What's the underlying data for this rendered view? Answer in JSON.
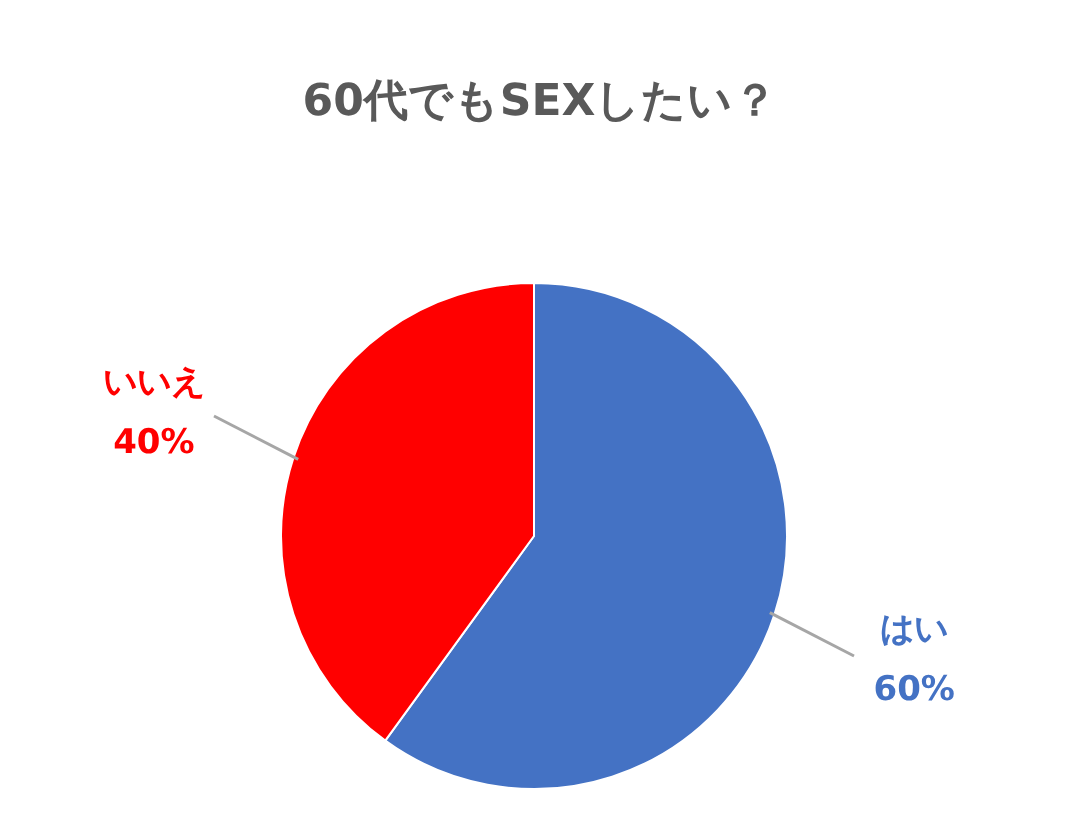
{
  "chart_data": {
    "type": "pie",
    "title": "60代でもSEXしたい？",
    "categories": [
      "はい",
      "いいえ"
    ],
    "values": [
      60,
      40
    ],
    "value_labels": [
      "60%",
      "40%"
    ],
    "colors": [
      "#4472c4",
      "#ff0000"
    ],
    "legend": false
  }
}
